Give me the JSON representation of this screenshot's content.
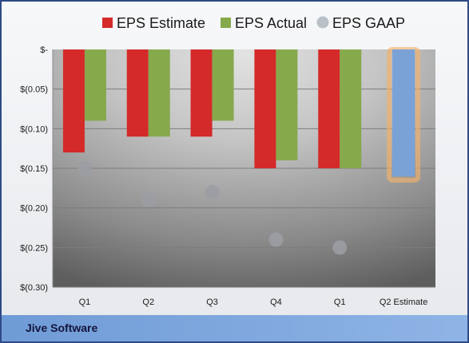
{
  "chart_data": {
    "type": "bar",
    "categories": [
      "Q1",
      "Q2",
      "Q3",
      "Q4",
      "Q1",
      "Q2 Estimate"
    ],
    "series": [
      {
        "name": "EPS Estimate",
        "type": "bar",
        "color": "#d42a2a",
        "values": [
          -0.13,
          -0.11,
          -0.11,
          -0.15,
          -0.15,
          null
        ]
      },
      {
        "name": "EPS Actual",
        "type": "bar",
        "color": "#86a94c",
        "values": [
          -0.09,
          -0.11,
          -0.09,
          -0.14,
          -0.15,
          null
        ]
      },
      {
        "name": "EPS GAAP",
        "type": "scatter",
        "color": "#b9c0c7",
        "values": [
          -0.15,
          -0.19,
          -0.18,
          -0.24,
          -0.25,
          null
        ]
      }
    ],
    "forecast": {
      "category": "Q2 Estimate",
      "value": -0.16,
      "color": "#7aa2d6",
      "highlight": "#f2b26b"
    },
    "y_ticks": [
      "$-",
      "$(0.05)",
      "$(0.10)",
      "$(0.15)",
      "$(0.20)",
      "$(0.25)",
      "$(0.30)"
    ],
    "ylim": [
      -0.3,
      0
    ],
    "legend_position": "top",
    "grid": true,
    "footer_label": "Jive Software",
    "colors": {
      "border": "#2e4a86",
      "footer_band": "#4f81bd"
    }
  }
}
